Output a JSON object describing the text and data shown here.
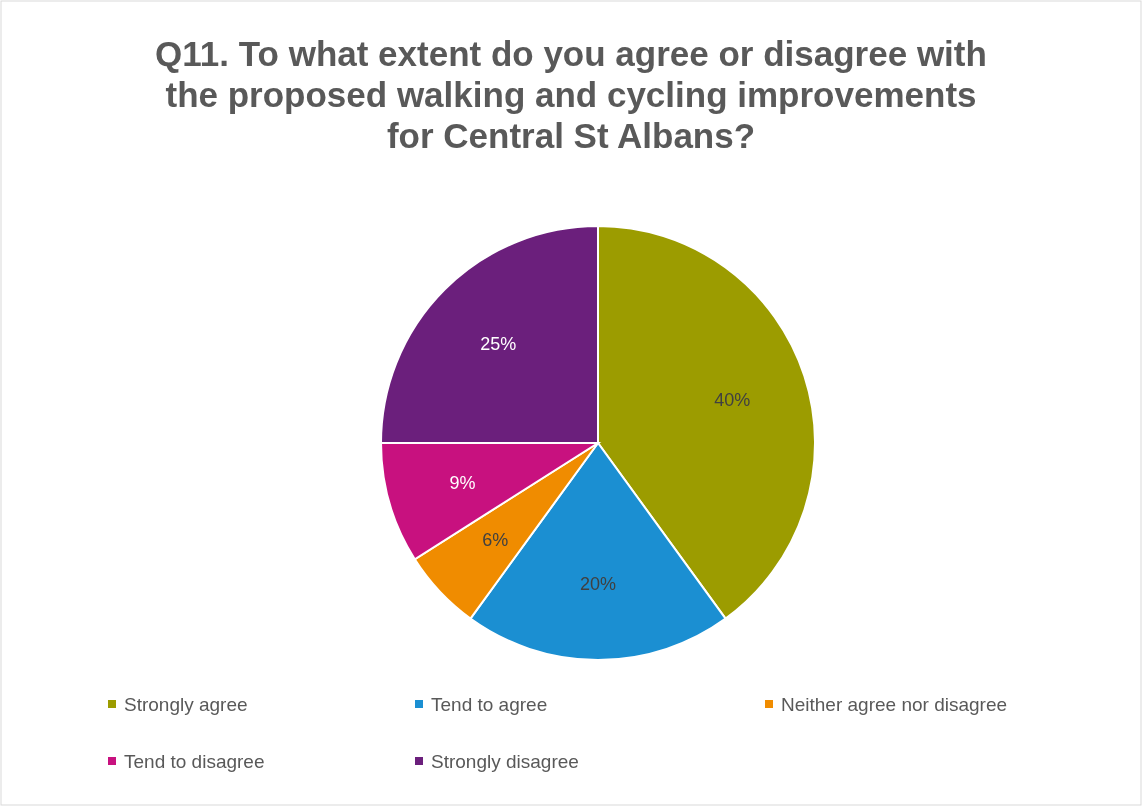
{
  "chart_data": {
    "type": "pie",
    "title": "Q11. To what extent do you agree or disagree with the proposed walking and cycling improvements for Central St Albans?",
    "categories": [
      "Strongly agree",
      "Tend to agree",
      "Neither agree nor disagree",
      "Tend to disagree",
      "Strongly disagree"
    ],
    "values": [
      40,
      20,
      6,
      9,
      25
    ],
    "colors": [
      "#9c9c00",
      "#1b8fd2",
      "#f08c00",
      "#c8117f",
      "#6b1f7c"
    ],
    "value_labels": [
      "40%",
      "20%",
      "6%",
      "9%",
      "25%"
    ],
    "legend": "bottom"
  }
}
